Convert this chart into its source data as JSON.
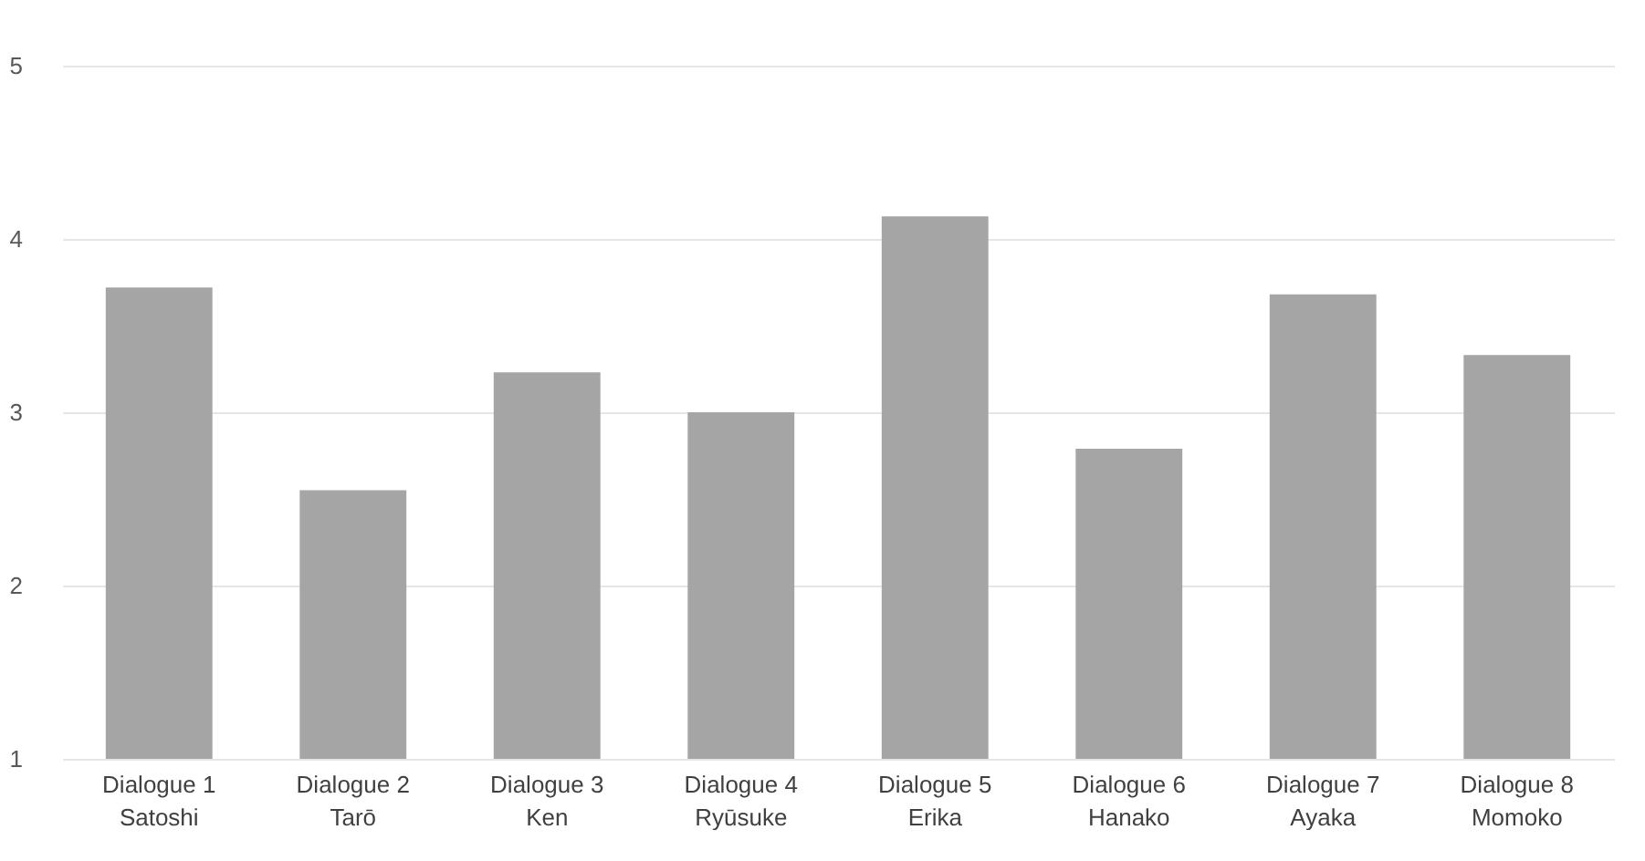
{
  "chart_data": {
    "type": "bar",
    "categories": [
      "Dialogue 1\nSatoshi",
      "Dialogue 2\nTarō",
      "Dialogue 3\nKen",
      "Dialogue 4\nRyūsuke",
      "Dialogue 5\nErika",
      "Dialogue 6\nHanako",
      "Dialogue 7\nAyaka",
      "Dialogue 8\nMomoko"
    ],
    "values": [
      3.72,
      2.55,
      3.23,
      3.0,
      4.13,
      2.79,
      3.68,
      3.33
    ],
    "color": "#a5a5a5",
    "ylim": [
      1,
      5
    ],
    "yticks": [
      1,
      2,
      3,
      4,
      5
    ],
    "grid": "y"
  }
}
